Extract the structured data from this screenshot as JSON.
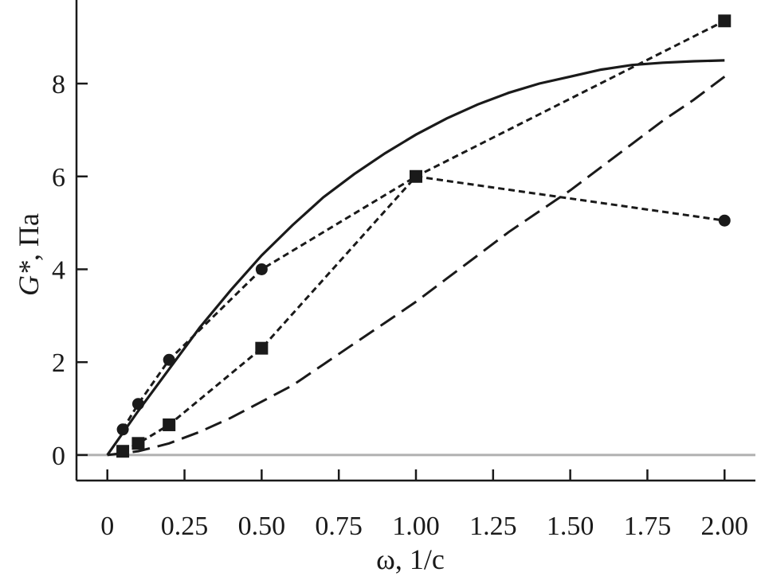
{
  "chart_data": {
    "type": "line",
    "title": "",
    "xlabel": "ω, 1/c",
    "ylabel_symbol": "G*",
    "ylabel_unit": ", Па",
    "xlim": [
      -0.1,
      2.1
    ],
    "ylim": [
      -0.55,
      9.8
    ],
    "x_ticks": [
      0,
      0.25,
      0.5,
      0.75,
      1.0,
      1.25,
      1.5,
      1.75,
      2.0
    ],
    "x_tick_labels": [
      "0",
      "0.25",
      "0.50",
      "0.75",
      "1.00",
      "1.25",
      "1.50",
      "1.75",
      "2.00"
    ],
    "y_ticks": [
      0,
      2,
      4,
      6,
      8
    ],
    "y_tick_labels": [
      "0",
      "2",
      "4",
      "6",
      "8"
    ],
    "zero_line_color": "#b0b0b0",
    "series": [
      {
        "style": "dotted",
        "marker": "circle",
        "x": [
          0.05,
          0.1,
          0.2,
          0.5,
          1.0,
          2.0
        ],
        "y": [
          0.55,
          1.1,
          2.05,
          4.0,
          6.0,
          5.05
        ]
      },
      {
        "style": "dotted",
        "marker": "square",
        "x": [
          0.05,
          0.1,
          0.2,
          0.5,
          1.0,
          2.0
        ],
        "y": [
          0.08,
          0.25,
          0.65,
          2.3,
          6.0,
          9.35
        ]
      },
      {
        "style": "solid",
        "marker": "none",
        "x": [
          0,
          0.1,
          0.2,
          0.3,
          0.4,
          0.5,
          0.6,
          0.7,
          0.8,
          0.9,
          1.0,
          1.1,
          1.2,
          1.3,
          1.4,
          1.5,
          1.6,
          1.7,
          1.8,
          1.9,
          2.0
        ],
        "y": [
          0,
          0.95,
          1.85,
          2.75,
          3.55,
          4.3,
          4.95,
          5.55,
          6.05,
          6.5,
          6.9,
          7.25,
          7.55,
          7.8,
          8.0,
          8.15,
          8.3,
          8.4,
          8.45,
          8.48,
          8.5
        ]
      },
      {
        "style": "dashed",
        "marker": "none",
        "x": [
          0,
          0.1,
          0.2,
          0.3,
          0.4,
          0.5,
          0.6,
          0.7,
          0.8,
          0.9,
          1.0,
          1.1,
          1.2,
          1.3,
          1.4,
          1.5,
          1.6,
          1.7,
          1.8,
          1.9,
          2.0
        ],
        "y": [
          0,
          0.08,
          0.25,
          0.5,
          0.8,
          1.15,
          1.5,
          1.95,
          2.4,
          2.85,
          3.3,
          3.8,
          4.3,
          4.8,
          5.25,
          5.7,
          6.2,
          6.7,
          7.2,
          7.65,
          8.15
        ]
      }
    ]
  }
}
